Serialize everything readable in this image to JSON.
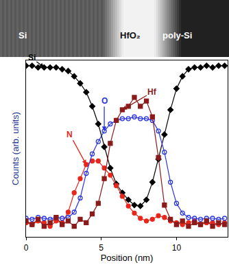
{
  "chart_data": {
    "type": "scatter",
    "x_label": "Position (nm)",
    "y_label": "Counts (arb. units)",
    "image_labels": [
      "Si",
      "HfO₂",
      "poly-Si"
    ],
    "x": [
      0,
      0.4,
      0.8,
      1.2,
      1.6,
      2.0,
      2.4,
      2.8,
      3.2,
      3.6,
      4.0,
      4.4,
      4.8,
      5.2,
      5.6,
      6.0,
      6.4,
      6.8,
      7.2,
      7.6,
      8.0,
      8.4,
      8.8,
      9.2,
      9.6,
      10.0,
      10.4,
      10.8,
      11.2,
      11.6,
      12.0,
      12.4,
      12.8,
      13.2
    ],
    "series": [
      {
        "name": "Si",
        "color": "#000000",
        "marker": "diamond",
        "line_style": "solid",
        "values": [
          9.7,
          9.7,
          9.6,
          9.6,
          9.6,
          9.6,
          9.5,
          9.4,
          9.1,
          8.7,
          8.2,
          7.4,
          6.4,
          5.1,
          3.9,
          3.0,
          2.5,
          2.1,
          1.8,
          1.75,
          2.1,
          3.1,
          4.4,
          5.8,
          7.2,
          8.4,
          9.1,
          9.5,
          9.6,
          9.6,
          9.7,
          9.6,
          9.7,
          9.7
        ]
      },
      {
        "name": "N",
        "color": "#e8261b",
        "marker": "circle",
        "line_style": "solid",
        "values": [
          0.8,
          0.7,
          0.9,
          0.8,
          0.6,
          0.9,
          0.8,
          1.4,
          2.5,
          3.3,
          4.1,
          4.3,
          4.3,
          3.9,
          3.5,
          2.9,
          2.3,
          1.75,
          1.35,
          1.05,
          0.9,
          1.0,
          1.2,
          1.1,
          0.9,
          0.8,
          0.7,
          0.8,
          0.9,
          0.7,
          0.8,
          0.8,
          0.7,
          0.8
        ]
      },
      {
        "name": "O",
        "color": "#2a35e0",
        "marker": "circle-open",
        "line_style": "solid",
        "values": [
          1.05,
          1.0,
          1.1,
          1.05,
          1.0,
          1.1,
          1.05,
          1.1,
          1.4,
          2.2,
          3.6,
          4.7,
          5.4,
          6.0,
          6.4,
          6.6,
          6.7,
          6.7,
          6.8,
          6.7,
          6.7,
          6.6,
          6.0,
          4.8,
          3.1,
          1.9,
          1.35,
          1.1,
          1.05,
          1.0,
          1.05,
          1.05,
          1.0,
          1.05
        ]
      },
      {
        "name": "Hf",
        "color": "#8b1a1a",
        "marker": "square",
        "line_style": "solid",
        "values": [
          0.9,
          0.7,
          1.0,
          0.6,
          0.8,
          1.1,
          0.7,
          0.9,
          0.6,
          1.0,
          0.8,
          1.3,
          1.9,
          3.3,
          5.3,
          6.6,
          7.2,
          7.4,
          7.9,
          7.4,
          7.7,
          6.8,
          4.5,
          1.8,
          1.0,
          0.7,
          0.9,
          0.6,
          0.8,
          0.7,
          0.9,
          0.6,
          0.8,
          0.7
        ]
      }
    ],
    "xlim": [
      0,
      13.4
    ],
    "xticks": [
      0,
      5,
      10
    ],
    "ylim": [
      0,
      10
    ],
    "yticks": [],
    "tick_labels": "x",
    "grid": false
  }
}
